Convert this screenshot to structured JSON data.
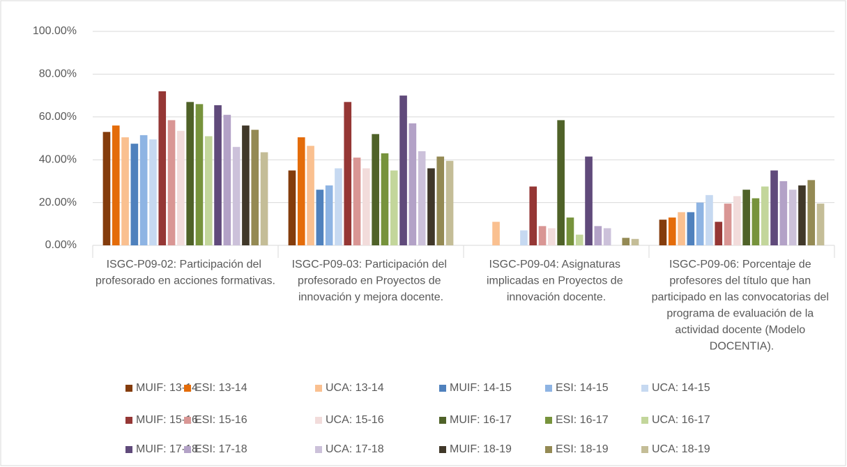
{
  "chart_data": {
    "type": "bar",
    "categories": [
      "ISGC-P09-02: Participación del profesorado en acciones formativas.",
      "ISGC-P09-03: Participación del profesorado en Proyectos de innovación y mejora docente.",
      "ISGC-P09-04: Asignaturas implicadas en Proyectos de innovación docente.",
      "ISGC-P09-06: Porcentaje de profesores del título que han participado en las convocatorias del programa de evaluación de la actividad docente (Modelo DOCENTIA)."
    ],
    "series": [
      {
        "name": "MUIF: 13-14",
        "color": "#843c0c",
        "values": [
          53,
          35,
          0,
          12
        ]
      },
      {
        "name": "ESI: 13-14",
        "color": "#e46c0a",
        "values": [
          56,
          50.5,
          0,
          13
        ]
      },
      {
        "name": "UCA: 13-14",
        "color": "#fac090",
        "values": [
          50.5,
          46.5,
          11,
          15.5
        ]
      },
      {
        "name": "MUIF: 14-15",
        "color": "#4f81bd",
        "values": [
          47.5,
          26,
          0,
          15.5
        ]
      },
      {
        "name": "ESI: 14-15",
        "color": "#8eb4e3",
        "values": [
          51.5,
          28,
          0,
          20
        ]
      },
      {
        "name": "UCA: 14-15",
        "color": "#c6d9f1",
        "values": [
          49.5,
          36,
          7,
          23.5
        ]
      },
      {
        "name": "MUIF: 15-16",
        "color": "#953735",
        "values": [
          72,
          67,
          27.5,
          11
        ]
      },
      {
        "name": "ESI: 15-16",
        "color": "#d99694",
        "values": [
          58.5,
          41,
          9,
          19.5
        ]
      },
      {
        "name": "UCA: 15-16",
        "color": "#f2dcdb",
        "values": [
          53.5,
          36,
          8,
          23
        ]
      },
      {
        "name": "MUIF: 16-17",
        "color": "#4f6228",
        "values": [
          67,
          52,
          58.5,
          26
        ]
      },
      {
        "name": "ESI: 16-17",
        "color": "#77933c",
        "values": [
          66,
          43,
          13,
          22
        ]
      },
      {
        "name": "UCA: 16-17",
        "color": "#c3d69b",
        "values": [
          51,
          35,
          5,
          27.5
        ]
      },
      {
        "name": "MUIF: 17-18",
        "color": "#604a7b",
        "values": [
          65.5,
          70,
          41.5,
          35
        ]
      },
      {
        "name": "ESI: 17-18",
        "color": "#b3a2c7",
        "values": [
          61,
          57,
          9,
          30
        ]
      },
      {
        "name": "UCA: 17-18",
        "color": "#ccc1da",
        "values": [
          46,
          44,
          8,
          26
        ]
      },
      {
        "name": "MUIF: 18-19",
        "color": "#403829",
        "values": [
          56,
          36,
          0,
          28
        ]
      },
      {
        "name": "ESI: 18-19",
        "color": "#948a54",
        "values": [
          54,
          41.5,
          3.5,
          30.5
        ]
      },
      {
        "name": "UCA: 18-19",
        "color": "#c4bd97",
        "values": [
          43.5,
          39.5,
          3,
          19.5
        ]
      }
    ],
    "ylim": [
      0,
      100
    ],
    "yticks": [
      {
        "value": 0,
        "label": "0.00%"
      },
      {
        "value": 20,
        "label": "20.00%"
      },
      {
        "value": 40,
        "label": "40.00%"
      },
      {
        "value": 60,
        "label": "60.00%"
      },
      {
        "value": 80,
        "label": "80.00%"
      },
      {
        "value": 100,
        "label": "100.00%"
      }
    ],
    "grid": true,
    "legend": "bottom"
  }
}
